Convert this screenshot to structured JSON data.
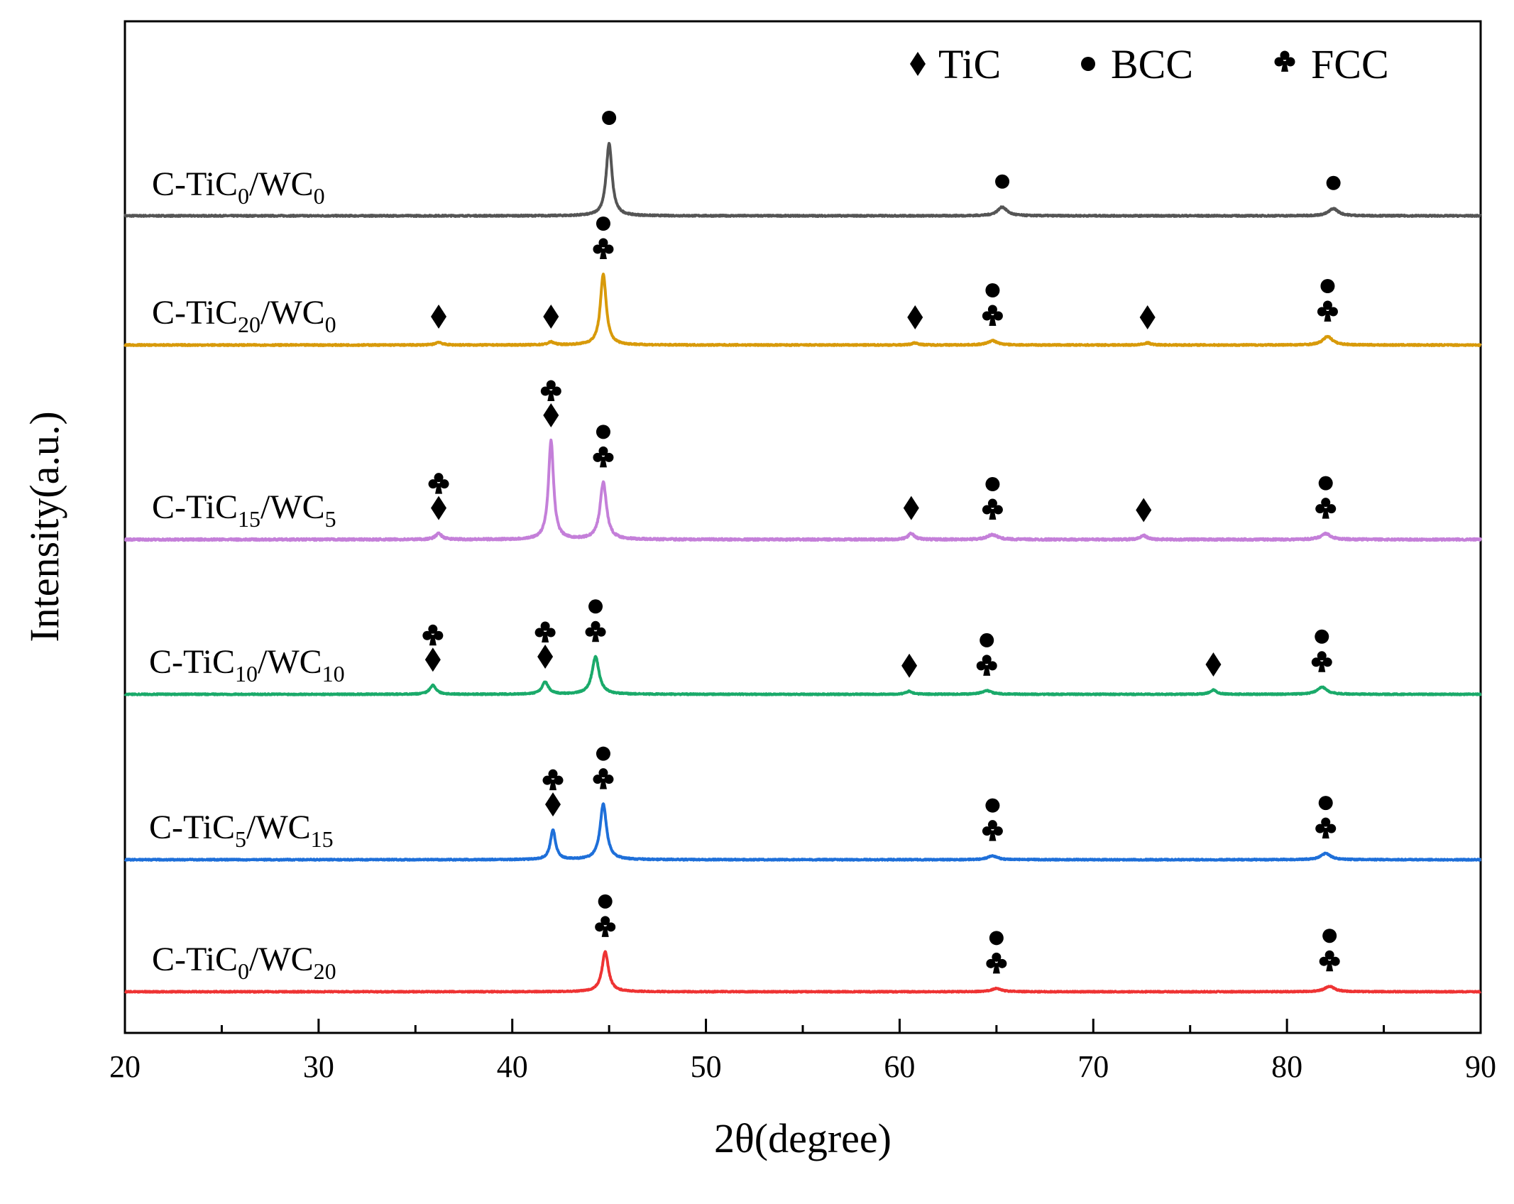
{
  "chart_data": {
    "type": "line",
    "title": "",
    "xlabel": "2θ(degree)",
    "ylabel": "Intensity(a.u.)",
    "xlim": [
      20,
      90
    ],
    "xticks": [
      20,
      30,
      40,
      50,
      60,
      70,
      80,
      90
    ],
    "xtick_labels": [
      "20",
      "30",
      "40",
      "50",
      "60",
      "70",
      "80",
      "90"
    ],
    "grid": false,
    "legend_position": "top-right",
    "legend": [
      {
        "symbol": "diamond",
        "glyph": "♦",
        "label": "TiC"
      },
      {
        "symbol": "circle",
        "glyph": "●",
        "label": "BCC"
      },
      {
        "symbol": "club",
        "glyph": "♣",
        "label": "FCC"
      }
    ],
    "series": [
      {
        "name": "C-TiC0/WC0",
        "label_main": "C-TiC",
        "label_sub1": "0",
        "label_mid": "/WC",
        "label_sub2": "0",
        "color": "#555555",
        "peaks": [
          {
            "x": 45.0,
            "h": 1.0,
            "w": 0.18
          },
          {
            "x": 65.3,
            "h": 0.12,
            "w": 0.3
          },
          {
            "x": 82.4,
            "h": 0.1,
            "w": 0.3
          }
        ],
        "markers": [
          {
            "x": 45.0,
            "symbols": [
              "circle"
            ]
          },
          {
            "x": 65.3,
            "symbols": [
              "circle"
            ]
          },
          {
            "x": 82.4,
            "symbols": [
              "circle"
            ]
          }
        ]
      },
      {
        "name": "C-TiC20/WC0",
        "label_main": "C-TiC",
        "label_sub1": "20",
        "label_mid": "/WC",
        "label_sub2": "0",
        "color": "#D89A0A",
        "peaks": [
          {
            "x": 36.2,
            "h": 0.04,
            "w": 0.2
          },
          {
            "x": 42.0,
            "h": 0.04,
            "w": 0.2
          },
          {
            "x": 44.7,
            "h": 1.0,
            "w": 0.18
          },
          {
            "x": 60.8,
            "h": 0.03,
            "w": 0.2
          },
          {
            "x": 64.8,
            "h": 0.06,
            "w": 0.3
          },
          {
            "x": 72.8,
            "h": 0.03,
            "w": 0.2
          },
          {
            "x": 82.1,
            "h": 0.12,
            "w": 0.3
          }
        ],
        "markers": [
          {
            "x": 36.2,
            "symbols": [
              "diamond"
            ]
          },
          {
            "x": 42.0,
            "symbols": [
              "diamond"
            ]
          },
          {
            "x": 44.7,
            "symbols": [
              "club",
              "circle"
            ]
          },
          {
            "x": 60.8,
            "symbols": [
              "diamond"
            ]
          },
          {
            "x": 64.8,
            "symbols": [
              "club",
              "circle"
            ]
          },
          {
            "x": 72.8,
            "symbols": [
              "diamond"
            ]
          },
          {
            "x": 82.1,
            "symbols": [
              "club",
              "circle"
            ]
          }
        ]
      },
      {
        "name": "C-TiC15/WC5",
        "label_main": "C-TiC",
        "label_sub1": "15",
        "label_mid": "/WC",
        "label_sub2": "5",
        "color": "#C47FD9",
        "peaks": [
          {
            "x": 36.2,
            "h": 0.06,
            "w": 0.2
          },
          {
            "x": 42.0,
            "h": 1.0,
            "w": 0.16
          },
          {
            "x": 44.7,
            "h": 0.58,
            "w": 0.2
          },
          {
            "x": 60.6,
            "h": 0.06,
            "w": 0.2
          },
          {
            "x": 64.8,
            "h": 0.05,
            "w": 0.3
          },
          {
            "x": 72.6,
            "h": 0.04,
            "w": 0.2
          },
          {
            "x": 82.0,
            "h": 0.06,
            "w": 0.3
          }
        ],
        "markers": [
          {
            "x": 36.2,
            "symbols": [
              "diamond",
              "club"
            ]
          },
          {
            "x": 42.0,
            "symbols": [
              "diamond",
              "club"
            ]
          },
          {
            "x": 44.7,
            "symbols": [
              "club",
              "circle"
            ]
          },
          {
            "x": 60.6,
            "symbols": [
              "diamond"
            ]
          },
          {
            "x": 64.8,
            "symbols": [
              "club",
              "circle"
            ]
          },
          {
            "x": 72.6,
            "symbols": [
              "diamond"
            ]
          },
          {
            "x": 82.0,
            "symbols": [
              "club",
              "circle"
            ]
          }
        ]
      },
      {
        "name": "C-TiC10/WC10",
        "label_main": "C-TiC",
        "label_sub1": "10",
        "label_mid": "/WC",
        "label_sub2": "10",
        "color": "#1AAA6A",
        "peaks": [
          {
            "x": 35.9,
            "h": 0.15,
            "w": 0.2
          },
          {
            "x": 41.7,
            "h": 0.2,
            "w": 0.2
          },
          {
            "x": 44.3,
            "h": 0.62,
            "w": 0.22
          },
          {
            "x": 60.5,
            "h": 0.05,
            "w": 0.2
          },
          {
            "x": 64.5,
            "h": 0.06,
            "w": 0.3
          },
          {
            "x": 76.2,
            "h": 0.07,
            "w": 0.2
          },
          {
            "x": 81.8,
            "h": 0.12,
            "w": 0.3
          }
        ],
        "markers": [
          {
            "x": 35.9,
            "symbols": [
              "diamond",
              "club"
            ]
          },
          {
            "x": 41.7,
            "symbols": [
              "diamond",
              "club"
            ]
          },
          {
            "x": 44.3,
            "symbols": [
              "club",
              "circle"
            ]
          },
          {
            "x": 60.5,
            "symbols": [
              "diamond"
            ]
          },
          {
            "x": 64.5,
            "symbols": [
              "club",
              "circle"
            ]
          },
          {
            "x": 76.2,
            "symbols": [
              "diamond"
            ]
          },
          {
            "x": 81.8,
            "symbols": [
              "club",
              "circle"
            ]
          }
        ]
      },
      {
        "name": "C-TiC5/WC15",
        "label_main": "C-TiC",
        "label_sub1": "5",
        "label_mid": "/WC",
        "label_sub2": "15",
        "color": "#1E6FD9",
        "peaks": [
          {
            "x": 42.1,
            "h": 0.47,
            "w": 0.16
          },
          {
            "x": 44.7,
            "h": 0.88,
            "w": 0.2
          },
          {
            "x": 64.8,
            "h": 0.06,
            "w": 0.3
          },
          {
            "x": 82.0,
            "h": 0.1,
            "w": 0.3
          }
        ],
        "markers": [
          {
            "x": 42.1,
            "symbols": [
              "diamond",
              "club"
            ]
          },
          {
            "x": 44.7,
            "symbols": [
              "club",
              "circle"
            ]
          },
          {
            "x": 64.8,
            "symbols": [
              "club",
              "circle"
            ]
          },
          {
            "x": 82.0,
            "symbols": [
              "club",
              "circle"
            ]
          }
        ]
      },
      {
        "name": "C-TiC0/WC20",
        "label_main": "C-TiC",
        "label_sub1": "0",
        "label_mid": "/WC",
        "label_sub2": "20",
        "color": "#EE3333",
        "peaks": [
          {
            "x": 44.8,
            "h": 0.72,
            "w": 0.2
          },
          {
            "x": 65.0,
            "h": 0.06,
            "w": 0.3
          },
          {
            "x": 82.2,
            "h": 0.1,
            "w": 0.3
          }
        ],
        "markers": [
          {
            "x": 44.8,
            "symbols": [
              "club",
              "circle"
            ]
          },
          {
            "x": 65.0,
            "symbols": [
              "club",
              "circle"
            ]
          },
          {
            "x": 82.2,
            "symbols": [
              "club",
              "circle"
            ]
          }
        ]
      }
    ]
  }
}
